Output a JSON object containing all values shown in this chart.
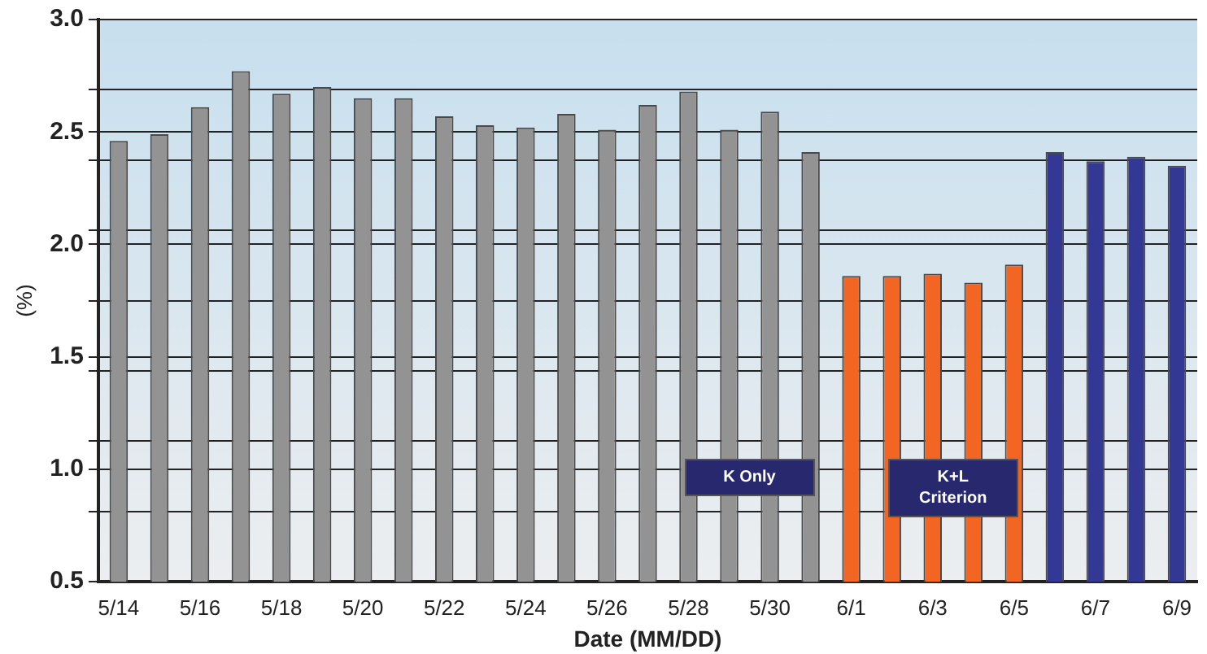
{
  "chart_data": {
    "type": "bar",
    "xlabel": "Date (MM/DD)",
    "ylabel": "(%)",
    "categories": [
      "5/14",
      null,
      "5/16",
      null,
      "5/18",
      null,
      "5/20",
      null,
      "5/22",
      null,
      "5/24",
      null,
      "5/26",
      null,
      "5/28",
      null,
      "5/30",
      null,
      "6/1",
      null,
      "6/3",
      null,
      "6/5",
      null,
      "6/7",
      null,
      "6/9"
    ],
    "series": [
      {
        "name": "K Only",
        "color": "#939393",
        "values": [
          2.46,
          2.49,
          2.61,
          2.77,
          2.67,
          2.7,
          2.65,
          2.65,
          2.57,
          2.53,
          2.52,
          2.58,
          2.51,
          2.62,
          2.68,
          2.51,
          2.59,
          2.41,
          null,
          null,
          null,
          null,
          null,
          null,
          null,
          null,
          null
        ]
      },
      {
        "name": "K+L Criterion",
        "color": "#f26522",
        "values": [
          null,
          null,
          null,
          null,
          null,
          null,
          null,
          null,
          null,
          null,
          null,
          null,
          null,
          null,
          null,
          null,
          null,
          null,
          1.86,
          1.86,
          1.87,
          1.83,
          1.91,
          null,
          null,
          null,
          null
        ]
      },
      {
        "color": "#343895",
        "values": [
          null,
          null,
          null,
          null,
          null,
          null,
          null,
          null,
          null,
          null,
          null,
          null,
          null,
          null,
          null,
          null,
          null,
          null,
          null,
          null,
          null,
          null,
          null,
          2.41,
          2.37,
          2.39,
          2.35
        ]
      }
    ],
    "ylim": [
      0.5,
      3.0
    ],
    "yticks": [
      {
        "value": 0.5,
        "label": "0.5"
      },
      {
        "value": 0.8125,
        "label": null
      },
      {
        "value": 1.0,
        "label": "1.0"
      },
      {
        "value": 1.125,
        "label": null
      },
      {
        "value": 1.4375,
        "label": null
      },
      {
        "value": 1.5,
        "label": "1.5"
      },
      {
        "value": 1.75,
        "label": null
      },
      {
        "value": 2.0,
        "label": "2.0"
      },
      {
        "value": 2.0625,
        "label": null
      },
      {
        "value": 2.375,
        "label": null
      },
      {
        "value": 2.5,
        "label": "2.5"
      },
      {
        "value": 2.6875,
        "label": null
      },
      {
        "value": 3.0,
        "label": "3.0"
      }
    ],
    "grid": "y",
    "legend": false
  }
}
